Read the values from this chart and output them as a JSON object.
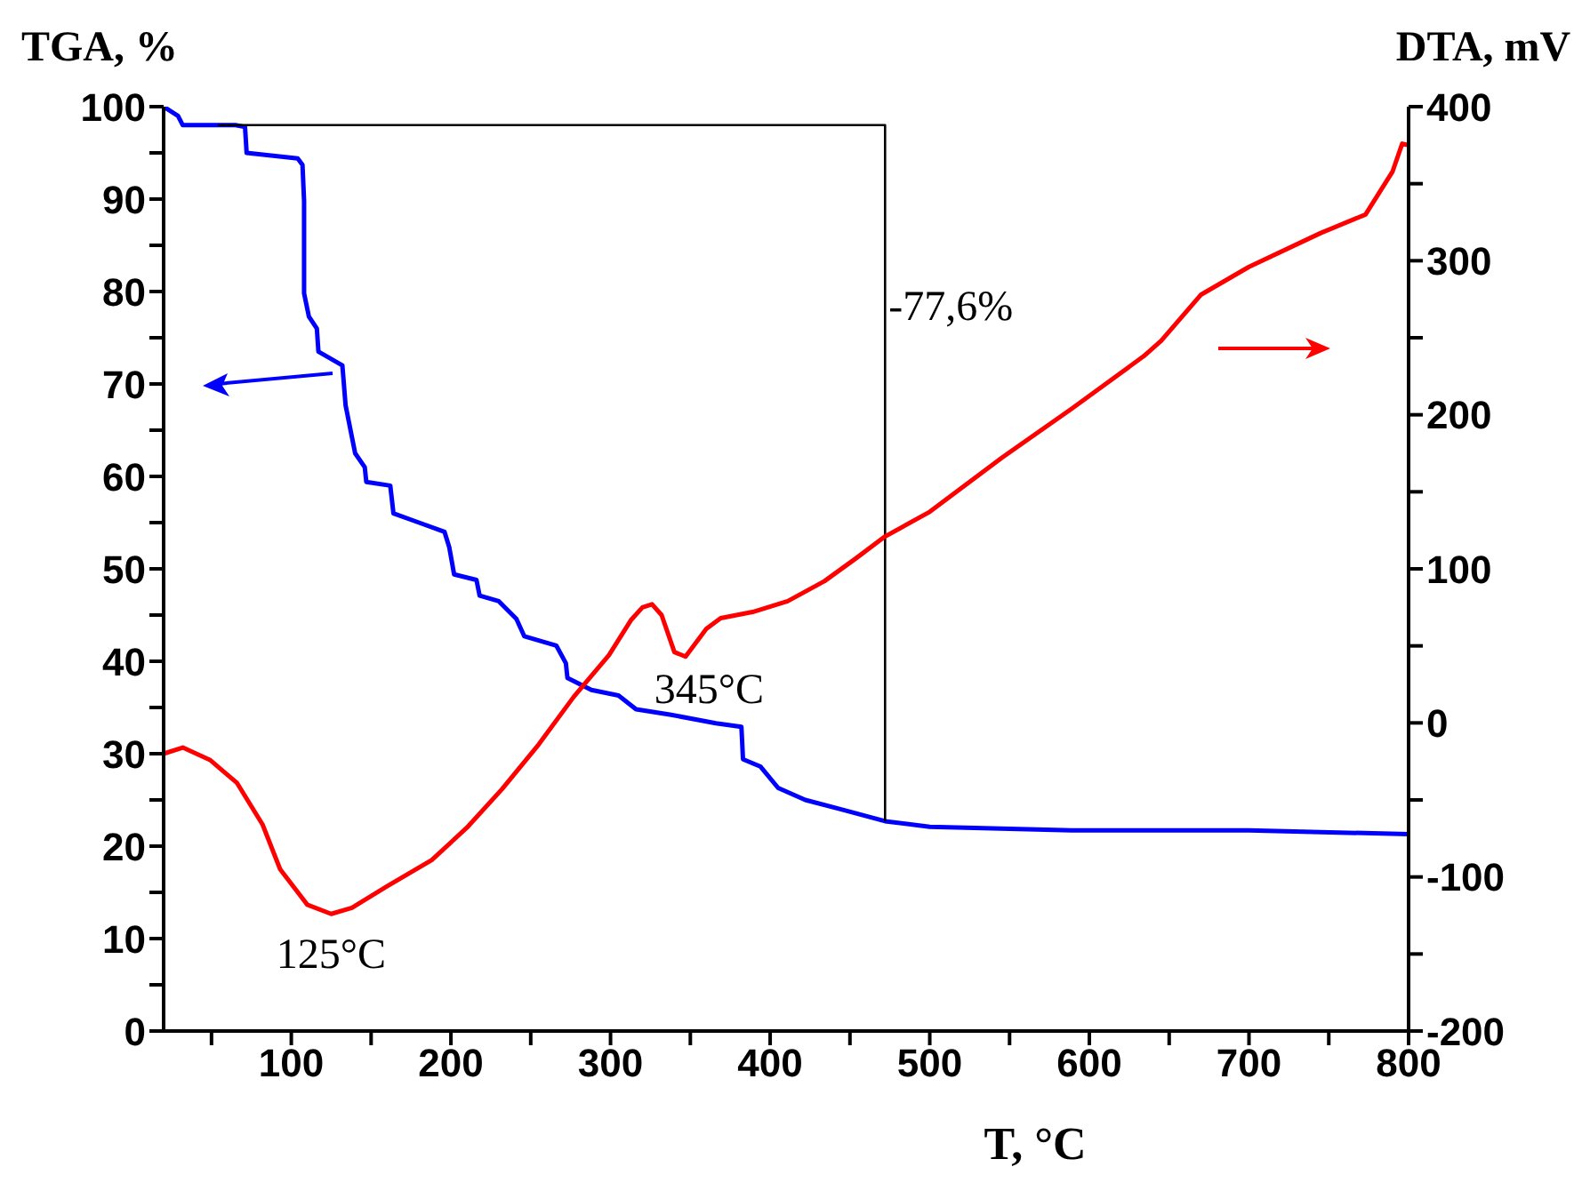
{
  "chart_data": {
    "type": "line",
    "xlabel": "T, °C",
    "ylabel": "TGA, %",
    "y2label": "DTA, mV",
    "xlim": [
      20,
      800
    ],
    "xticks": [
      {
        "value": 50,
        "label": null
      },
      100,
      {
        "value": 150,
        "label": null
      },
      200,
      {
        "value": 250,
        "label": null
      },
      300,
      {
        "value": 350,
        "label": null
      },
      400,
      {
        "value": 450,
        "label": null
      },
      500,
      {
        "value": 550,
        "label": null
      },
      600,
      {
        "value": 650,
        "label": null
      },
      700,
      {
        "value": 750,
        "label": null
      },
      800
    ],
    "ylim": [
      0,
      100
    ],
    "yticks": [
      0,
      {
        "value": 5,
        "label": null
      },
      10,
      {
        "value": 15,
        "label": null
      },
      20,
      {
        "value": 25,
        "label": null
      },
      30,
      {
        "value": 35,
        "label": null
      },
      40,
      {
        "value": 45,
        "label": null
      },
      50,
      {
        "value": 55,
        "label": null
      },
      60,
      {
        "value": 65,
        "label": null
      },
      70,
      {
        "value": 75,
        "label": null
      },
      80,
      {
        "value": 85,
        "label": null
      },
      90,
      {
        "value": 95,
        "label": null
      },
      100
    ],
    "y2lim": [
      -200,
      400
    ],
    "y2ticks": [
      -200,
      {
        "value": -150,
        "label": null
      },
      -100,
      {
        "value": -50,
        "label": null
      },
      0,
      {
        "value": 50,
        "label": null
      },
      100,
      {
        "value": 150,
        "label": null
      },
      200,
      {
        "value": 250,
        "label": null
      },
      300,
      {
        "value": 350,
        "label": null
      },
      400
    ],
    "grid": false,
    "legend": false,
    "marker": "none",
    "line_style": "solid",
    "series": [
      {
        "color": "#0000ff",
        "x": [
          20,
          29,
          32,
          65,
          71,
          72,
          104,
          107,
          108,
          108,
          111,
          116,
          117,
          132,
          134,
          140,
          146,
          147,
          162,
          164,
          180,
          196,
          199,
          202,
          216,
          218,
          230,
          241,
          246,
          266,
          272,
          273,
          288,
          305,
          316,
          338,
          366,
          382,
          383,
          394,
          405,
          422,
          444,
          472,
          500,
          589,
          700,
          800
        ],
        "values": [
          100,
          99,
          98,
          98,
          97.8,
          95,
          94.4,
          93.7,
          89.8,
          79.8,
          77.3,
          76,
          73.5,
          72,
          67.7,
          62.5,
          61,
          59.4,
          59,
          56,
          55,
          54,
          52.3,
          49.4,
          48.8,
          47.1,
          46.5,
          44.6,
          42.7,
          41.7,
          39.8,
          38.2,
          36.9,
          36.3,
          34.8,
          34.2,
          33.3,
          32.9,
          29.4,
          28.6,
          26.3,
          25,
          24,
          22.7,
          22.1,
          21.7,
          21.7,
          21.3
        ]
      },
      {
        "color": "#000000",
        "x": [
          54,
          472,
          472
        ],
        "values": [
          98,
          98,
          22.7
        ],
        "line_style": "solid",
        "marker": "none"
      },
      {
        "color": "#ff0000",
        "axis": "y2",
        "x": [
          20,
          32,
          49,
          66,
          82,
          93,
          110,
          125,
          138,
          160,
          188,
          210,
          232,
          255,
          277,
          299,
          313,
          320,
          326,
          332,
          340,
          347,
          360,
          369,
          389,
          411,
          434,
          454,
          472,
          500,
          545,
          589,
          634,
          645,
          670,
          700,
          745,
          773,
          790,
          796,
          800
        ],
        "values": [
          -20,
          -16,
          -24,
          -39,
          -66,
          -95,
          -118,
          -124,
          -120,
          -106,
          -89,
          -68,
          -43,
          -14,
          17,
          44,
          67,
          75,
          77,
          70,
          46,
          43,
          61,
          68,
          72,
          79,
          92,
          107,
          121,
          137,
          172,
          204,
          238,
          248,
          278,
          296,
          318,
          330,
          358,
          376,
          375
        ]
      }
    ],
    "annotations": [
      {
        "text": "125°C",
        "x": 125,
        "y": 13
      },
      {
        "text": "345°C",
        "x": 345,
        "y": 40.5
      },
      "-77,6%"
    ]
  }
}
